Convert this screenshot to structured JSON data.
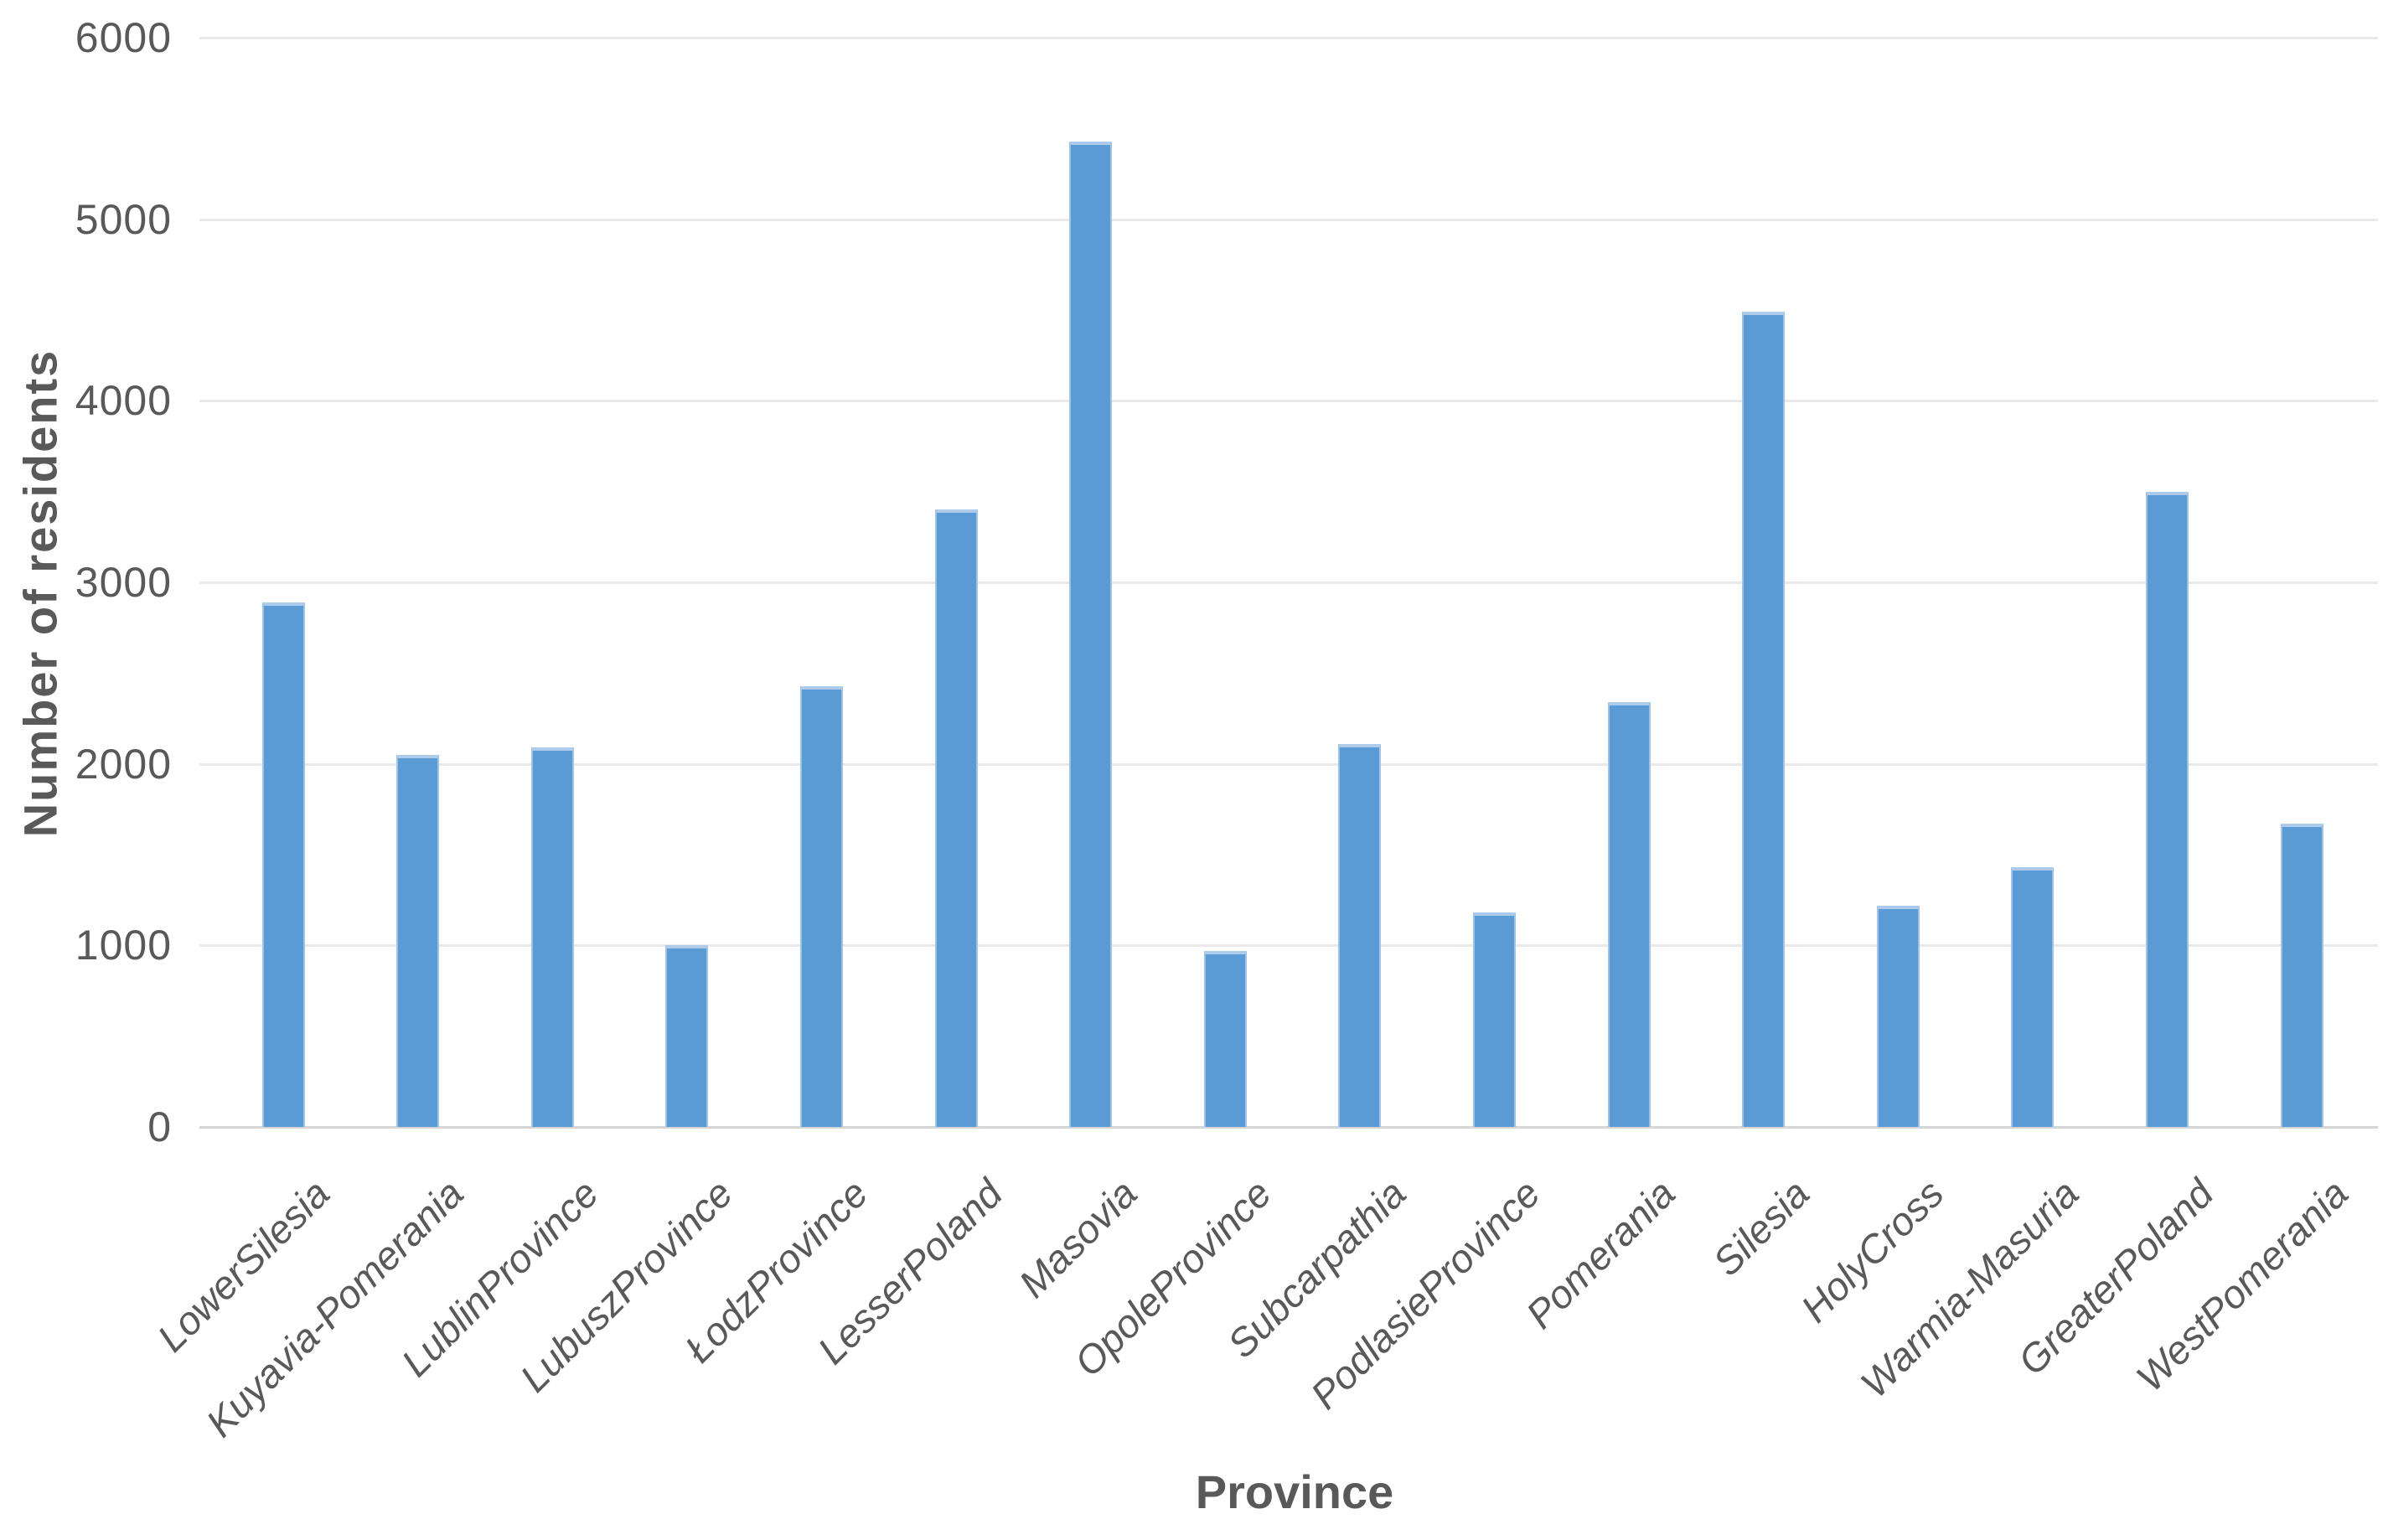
{
  "chart_data": {
    "type": "bar",
    "title": "",
    "xlabel": "Province",
    "ylabel": "Number of residents",
    "categories": [
      "LowerSilesia",
      "Kuyavia-Pomerania",
      "LublinProvince",
      "LubuszProvince",
      "ŁodzProvince",
      "LesserPoland",
      "Masovia",
      "OpoleProvince",
      "Subcarpathia",
      "PodlasieProvince",
      "Pomerania",
      "Silesia",
      "HolyCross",
      "Warmia-Masuria",
      "GreaterPoland",
      "WestPomerania"
    ],
    "values": [
      2890,
      2050,
      2090,
      1000,
      2430,
      3400,
      5430,
      970,
      2110,
      1180,
      2340,
      4490,
      1220,
      1430,
      3500,
      1670
    ],
    "ylim": [
      0,
      6000
    ],
    "ytick_step": 1000,
    "yticks": [
      6000,
      5000,
      4000,
      3000,
      2000,
      1000,
      0
    ],
    "grid": "horizontal-only",
    "legend": "none",
    "bar_color": "#5b9bd5",
    "bar_edge_color": "#9dc3e6",
    "gridline_color": "#e9e9e9",
    "text_color": "#595959"
  }
}
